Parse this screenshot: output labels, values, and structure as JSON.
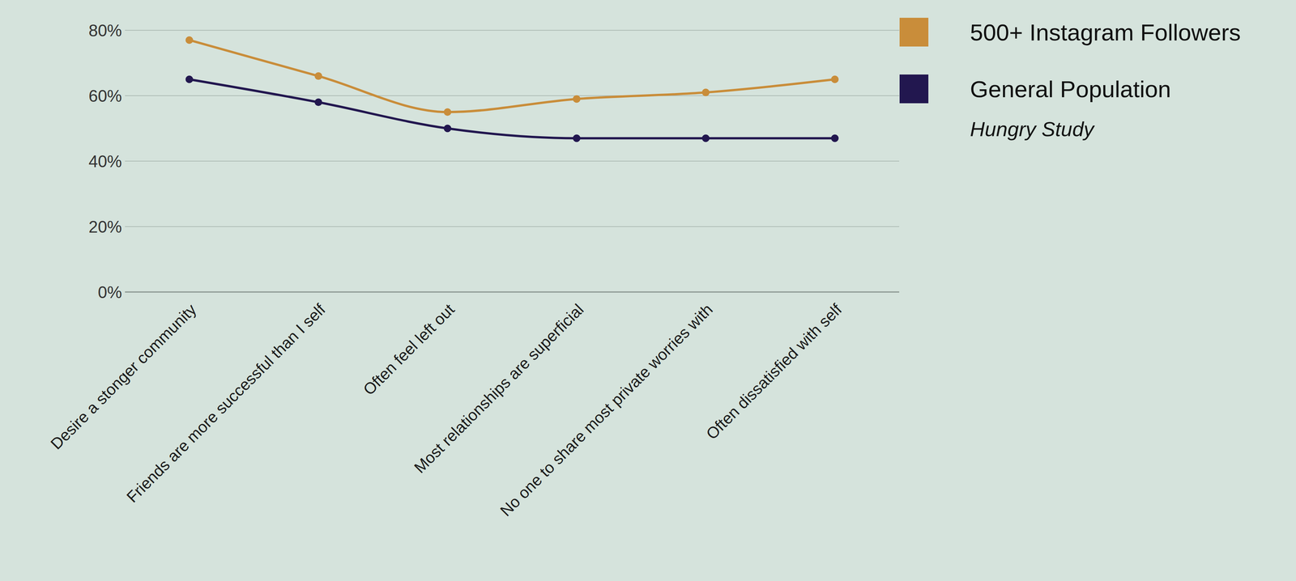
{
  "chart_data": {
    "type": "line",
    "subtitle": "Hungry Study",
    "categories": [
      "Desire a stonger community",
      "Friends are more successful than I self",
      "Often feel left out",
      "Most relationships are superficial",
      "No one to share most private worries with",
      "Often dissatisfied with self"
    ],
    "series": [
      {
        "name": "500+ Instagram Followers",
        "color": "#c98d3a",
        "values": [
          77,
          66,
          55,
          59,
          61,
          65
        ]
      },
      {
        "name": "General Population",
        "color": "#22174f",
        "values": [
          65,
          58,
          50,
          47,
          47,
          47
        ]
      }
    ],
    "ylim": [
      0,
      80
    ],
    "yticks": [
      {
        "value": 0,
        "label": "0%"
      },
      {
        "value": 20,
        "label": "20%"
      },
      {
        "value": 40,
        "label": "40%"
      },
      {
        "value": 60,
        "label": "60%"
      },
      {
        "value": 80,
        "label": "80%"
      }
    ],
    "grid": true,
    "legend": "top-right",
    "marker": "circle",
    "line_style": "solid"
  }
}
